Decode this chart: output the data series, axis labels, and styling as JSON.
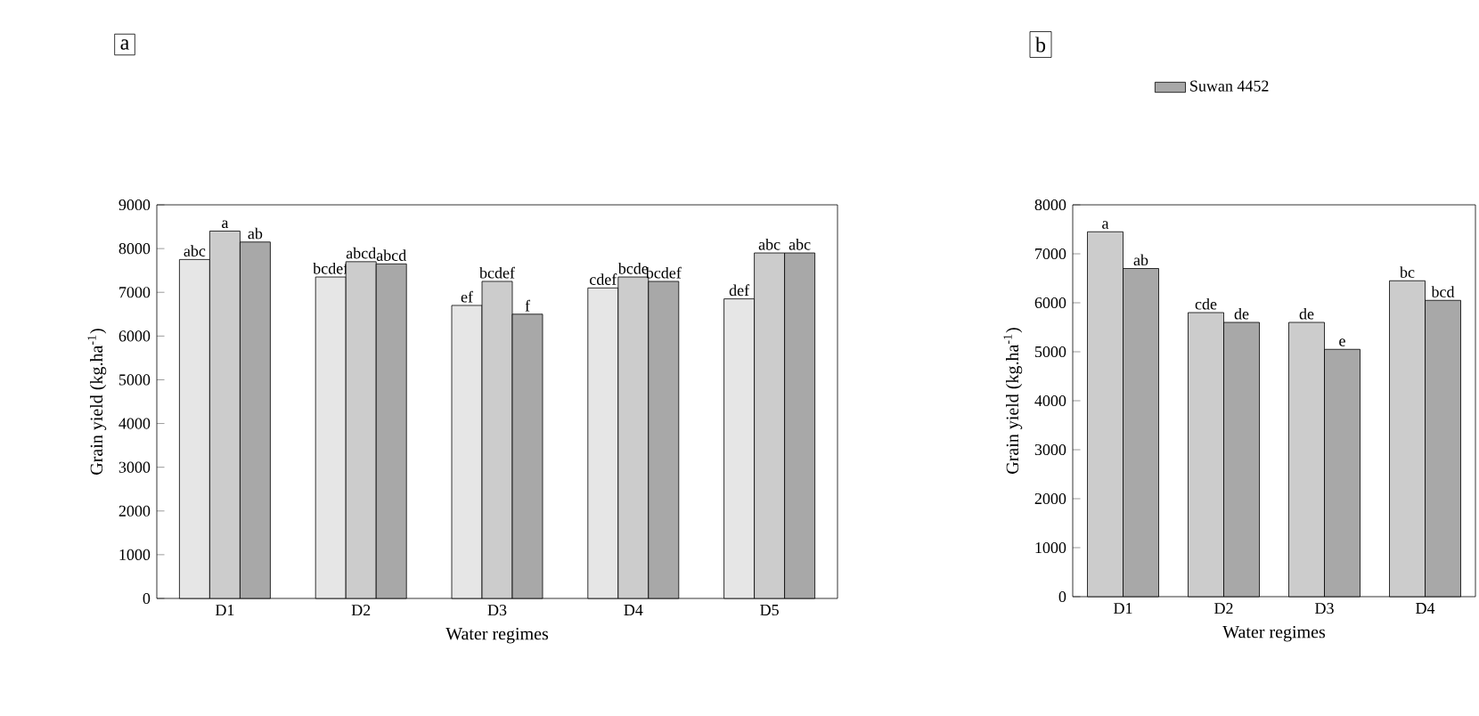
{
  "chart_data": [
    {
      "type": "bar",
      "categories": [
        "D1",
        "D2",
        "D3",
        "D4",
        "D5"
      ],
      "xlabel": "Water regimes",
      "ylabel": "Grain yield (kg.ha$^{-1}$)",
      "ylim": [
        0,
        9000
      ],
      "yticks": [
        0,
        1000,
        2000,
        3000,
        4000,
        5000,
        6000,
        7000,
        8000,
        9000
      ],
      "annotations": [
        "a"
      ],
      "series": [
        {
          "color": "#e6e6e6",
          "values": [
            7750,
            7350,
            6700,
            7100,
            6850
          ],
          "value_labels": [
            "abc",
            "bcdef",
            "ef",
            "cdef",
            "def"
          ]
        },
        {
          "color": "#cccccc",
          "values": [
            8400,
            7700,
            7250,
            7350,
            7900
          ],
          "value_labels": [
            "a",
            "abcd",
            "bcdef",
            "bcde",
            "abc"
          ]
        },
        {
          "color": "#a8a8a8",
          "values": [
            8150,
            7650,
            6500,
            7250,
            7900
          ],
          "value_labels": [
            "ab",
            "abcd",
            "f",
            "bcdef",
            "abc"
          ]
        }
      ]
    },
    {
      "type": "bar",
      "categories": [
        "D1",
        "D2",
        "D3",
        "D4"
      ],
      "xlabel": "Water regimes",
      "ylabel": "Grain yield (kg.ha$^{-1}$)",
      "ylim": [
        0,
        8000
      ],
      "yticks": [
        0,
        1000,
        2000,
        3000,
        4000,
        5000,
        6000,
        7000,
        8000
      ],
      "annotations": [
        "b"
      ],
      "legend": "top",
      "series": [
        {
          "color": "#cccccc",
          "values": [
            7450,
            5800,
            5600,
            6450
          ],
          "value_labels": [
            "a",
            "cde",
            "de",
            "bc"
          ]
        },
        {
          "name": "Suwan 4452",
          "color": "#a8a8a8",
          "values": [
            6700,
            5600,
            5050,
            6050
          ],
          "value_labels": [
            "ab",
            "de",
            "e",
            "bcd"
          ]
        }
      ]
    }
  ]
}
